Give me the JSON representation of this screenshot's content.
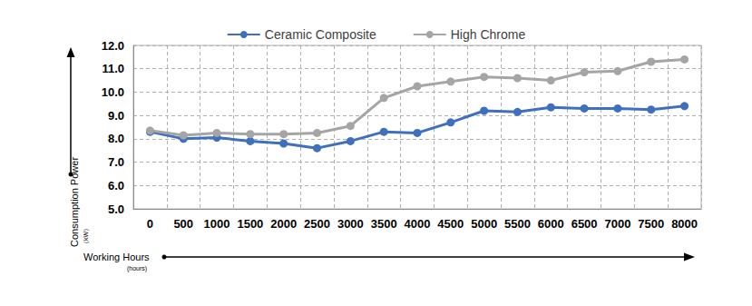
{
  "chart_data": {
    "type": "line",
    "xlabel": "Working Hours",
    "xlabel_unit": "(hours)",
    "ylabel": "Consumption Power",
    "ylabel_unit": "（kW）",
    "categories": [
      "0",
      "500",
      "1000",
      "1500",
      "2000",
      "2500",
      "3000",
      "3500",
      "4000",
      "4500",
      "5000",
      "5500",
      "6000",
      "6500",
      "7000",
      "7500",
      "8000"
    ],
    "series": [
      {
        "name": "Ceramic Composite",
        "color": "#3f6fbf",
        "marker": "circle",
        "values": [
          8.3,
          8.0,
          8.05,
          7.9,
          7.8,
          7.6,
          7.9,
          8.3,
          8.25,
          8.7,
          9.2,
          9.15,
          9.35,
          9.3,
          9.3,
          9.25,
          9.4
        ]
      },
      {
        "name": "High Chrome",
        "color": "#a5a5a5",
        "marker": "circle",
        "values": [
          8.35,
          8.15,
          8.25,
          8.2,
          8.2,
          8.25,
          8.55,
          9.75,
          10.25,
          10.45,
          10.65,
          10.6,
          10.5,
          10.85,
          10.9,
          11.3,
          11.4
        ]
      }
    ],
    "ylim": [
      5,
      12
    ],
    "yticks": [
      {
        "value": 5,
        "label": "5.0"
      },
      {
        "value": 6,
        "label": "6.0"
      },
      {
        "value": 7,
        "label": "7.0"
      },
      {
        "value": 8,
        "label": "8.0"
      },
      {
        "value": 9,
        "label": "9.0"
      },
      {
        "value": 10,
        "label": "10.0"
      },
      {
        "value": 11,
        "label": "11.0"
      },
      {
        "value": 12,
        "label": "12.0"
      }
    ],
    "grid": true,
    "legend": "top"
  }
}
